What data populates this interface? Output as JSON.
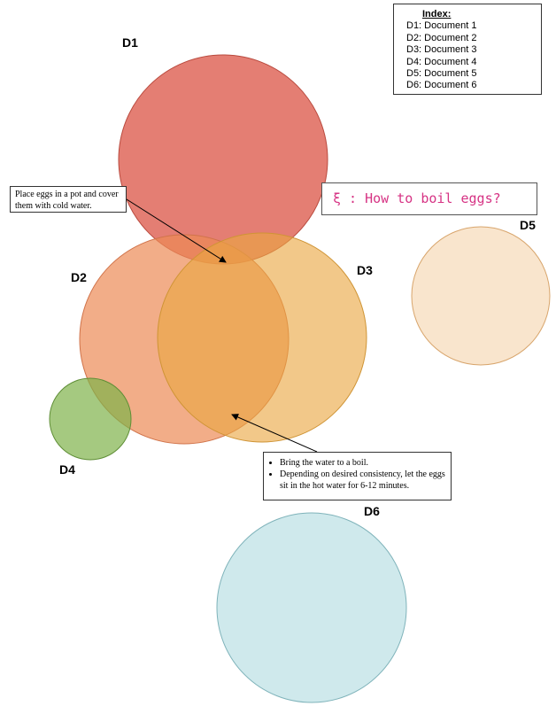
{
  "index": {
    "title": "Index:",
    "items": [
      "D1: Document 1",
      "D2: Document 2",
      "D3: Document 3",
      "D4: Document 4",
      "D5: Document 5",
      "D6: Document 6"
    ]
  },
  "query": "ξ : How to boil eggs?",
  "documents": [
    "D1",
    "D2",
    "D3",
    "D4",
    "D5",
    "D6"
  ],
  "callouts": [
    {
      "text": "Place eggs in a pot and cover them with cold water."
    },
    {
      "bullets": [
        "Bring the water to a boil.",
        "Depending on desired consistency, let the eggs sit in the hot water for 6-12 minutes."
      ]
    }
  ]
}
